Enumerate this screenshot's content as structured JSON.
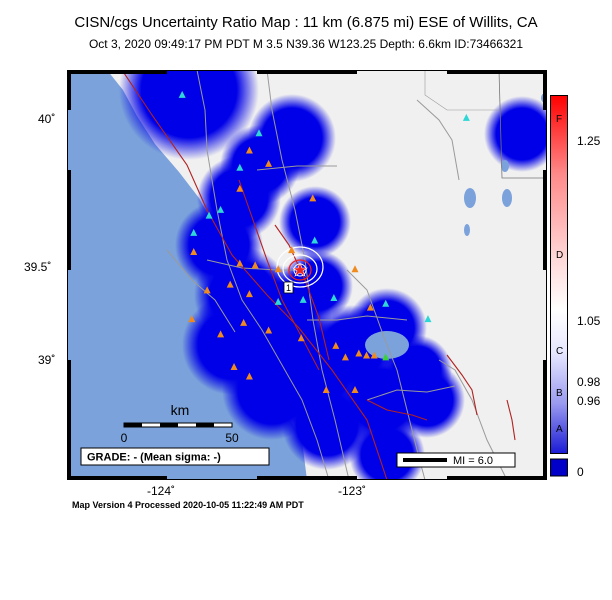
{
  "title": "CISN/cgs Uncertainty Ratio Map : 11 km (6.875 mi) ESE of Willits, CA",
  "subtitle": "Oct  3, 2020 09:49:17 PM PDT   M 3.5   N39.36 W123.25   Depth: 6.6km   ID:73466321",
  "footer": "Map Version 4 Processed 2020-10-05 11:22:49 AM PDT",
  "axes": {
    "lon_ticks": [
      {
        "value": -124,
        "label": "-124˚"
      },
      {
        "value": -123,
        "label": "-123˚"
      }
    ],
    "lat_ticks": [
      {
        "value": 40,
        "label": "40˚"
      },
      {
        "value": 39.5,
        "label": "39.5˚"
      },
      {
        "value": 39,
        "label": "39˚"
      }
    ]
  },
  "scale_bar": {
    "title": "km",
    "labels": [
      "0",
      "50"
    ]
  },
  "grade": "GRADE: - (Mean sigma: -)",
  "mi_legend": "MI = 6.0",
  "colorbar": {
    "values": [
      "1.25",
      "1.05",
      "0.98",
      "0.96",
      "0"
    ],
    "letters": [
      "F",
      "D",
      "C",
      "B",
      "A"
    ]
  },
  "colors": {
    "water": "#7ba2db",
    "land": "#f0f0f0",
    "uncertainty": "#0000e8",
    "fault": "#b22222",
    "road": "#9a9a9a"
  },
  "epicenter": {
    "lon": -123.25,
    "lat": 39.36,
    "label": "1"
  },
  "stations": {
    "triangle_cyan": [
      [
        -123.9,
        40.09
      ],
      [
        -123.5,
        39.89
      ],
      [
        -123.6,
        39.71
      ],
      [
        -123.7,
        39.49
      ],
      [
        -123.76,
        39.46
      ],
      [
        -123.21,
        39.33
      ],
      [
        -123.84,
        39.37
      ],
      [
        -123.27,
        39.02
      ],
      [
        -123.11,
        39.03
      ],
      [
        -122.84,
        39.0
      ],
      [
        -122.42,
        39.97
      ],
      [
        -122.62,
        38.92
      ],
      [
        -123.4,
        39.01
      ]
    ],
    "triangle_orange": [
      [
        -123.55,
        39.8
      ],
      [
        -123.45,
        39.73
      ],
      [
        -123.6,
        39.6
      ],
      [
        -123.22,
        39.55
      ],
      [
        -123.33,
        39.28
      ],
      [
        -123.84,
        39.27
      ],
      [
        -123.52,
        39.2
      ],
      [
        -123.77,
        39.07
      ],
      [
        -123.6,
        39.21
      ],
      [
        -123.4,
        39.18
      ],
      [
        -123.65,
        39.1
      ],
      [
        -123.55,
        39.05
      ],
      [
        -123.0,
        39.18
      ],
      [
        -123.58,
        38.9
      ],
      [
        -123.45,
        38.86
      ],
      [
        -123.28,
        38.82
      ],
      [
        -123.1,
        38.78
      ],
      [
        -123.05,
        38.72
      ],
      [
        -122.98,
        38.74
      ],
      [
        -122.9,
        38.73
      ],
      [
        -123.55,
        38.62
      ],
      [
        -123.15,
        38.55
      ],
      [
        -123.0,
        38.55
      ],
      [
        -123.85,
        38.92
      ],
      [
        -123.7,
        38.84
      ],
      [
        -122.94,
        38.73
      ],
      [
        -122.92,
        38.98
      ],
      [
        -123.63,
        38.67
      ]
    ],
    "triangle_green": [
      [
        -122.84,
        38.72
      ]
    ]
  }
}
